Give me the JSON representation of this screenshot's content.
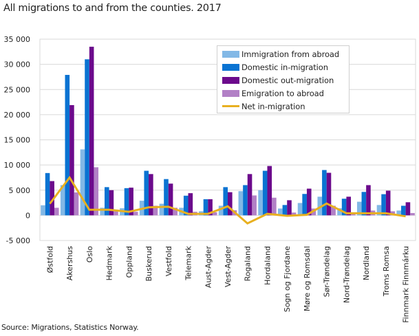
{
  "title": "All migrations to and from the counties. 2017",
  "source": "Source: Migrations, Statistics Norway.",
  "legend": [
    {
      "label": "Immigration from abroad",
      "color": "#82b8e6",
      "kind": "bar"
    },
    {
      "label": "Domestic in-migration",
      "color": "#0a73d2",
      "kind": "bar"
    },
    {
      "label": "Domestic out-migration",
      "color": "#6c0a8c",
      "kind": "bar"
    },
    {
      "label": "Emigration to abroad",
      "color": "#b280c6",
      "kind": "bar"
    },
    {
      "label": "Net in-migration",
      "color": "#e8b020",
      "kind": "line"
    }
  ],
  "y_ticks": [
    "35 000",
    "30 000",
    "25 000",
    "20 000",
    "15 000",
    "10 000",
    "5 000",
    "0",
    "-5 000"
  ],
  "chart_data": {
    "type": "bar",
    "title": "All migrations to and from the counties. 2017",
    "xlabel": "",
    "ylabel": "",
    "ylim": [
      -5000,
      35000
    ],
    "yticks": [
      -5000,
      0,
      5000,
      10000,
      15000,
      20000,
      25000,
      30000,
      35000
    ],
    "grid": true,
    "legend_position": "top-right (inside)",
    "categories": [
      "Østfold",
      "Akershus",
      "Oslo",
      "Hedmark",
      "Oppland",
      "Buskerud",
      "Vestfold",
      "Telemark",
      "Aust-Agder",
      "Vest-Agder",
      "Rogaland",
      "Hordaland",
      "Sogn og Fjordane",
      "Møre og Romsdal",
      "Sør-Trøndelag",
      "Nord-Trøndelag",
      "Nordland",
      "Troms Romsa",
      "Finnmark Finnmárku"
    ],
    "series": [
      {
        "name": "Immigration from abroad",
        "type": "bar",
        "color": "#82b8e6",
        "values": [
          2000,
          6000,
          13100,
          1500,
          1400,
          2900,
          2300,
          1500,
          800,
          1900,
          4800,
          5000,
          1350,
          2450,
          3700,
          1400,
          2700,
          2050,
          950
        ]
      },
      {
        "name": "Domestic in-migration",
        "type": "bar",
        "color": "#0a73d2",
        "values": [
          8400,
          27900,
          31000,
          5600,
          5400,
          8850,
          7200,
          3900,
          3200,
          5600,
          6000,
          8850,
          2050,
          4250,
          9000,
          3300,
          4650,
          4200,
          1900
        ]
      },
      {
        "name": "Domestic out-migration",
        "type": "bar",
        "color": "#6c0a8c",
        "values": [
          6800,
          21900,
          33500,
          5000,
          5500,
          8200,
          6300,
          4400,
          3200,
          4600,
          8200,
          9800,
          3000,
          5300,
          8450,
          3700,
          6000,
          4900,
          2600
        ]
      },
      {
        "name": "Emigration to abroad",
        "type": "bar",
        "color": "#b280c6",
        "values": [
          1500,
          4550,
          9550,
          800,
          700,
          1900,
          1500,
          700,
          600,
          1000,
          3950,
          3500,
          550,
          1350,
          1900,
          550,
          950,
          800,
          450
        ]
      },
      {
        "name": "Net in-migration",
        "type": "line",
        "color": "#e8b020",
        "values": [
          2300,
          7500,
          1100,
          1100,
          700,
          1600,
          1700,
          300,
          300,
          1800,
          -1600,
          300,
          -100,
          100,
          2350,
          400,
          400,
          400,
          -200
        ]
      }
    ]
  }
}
